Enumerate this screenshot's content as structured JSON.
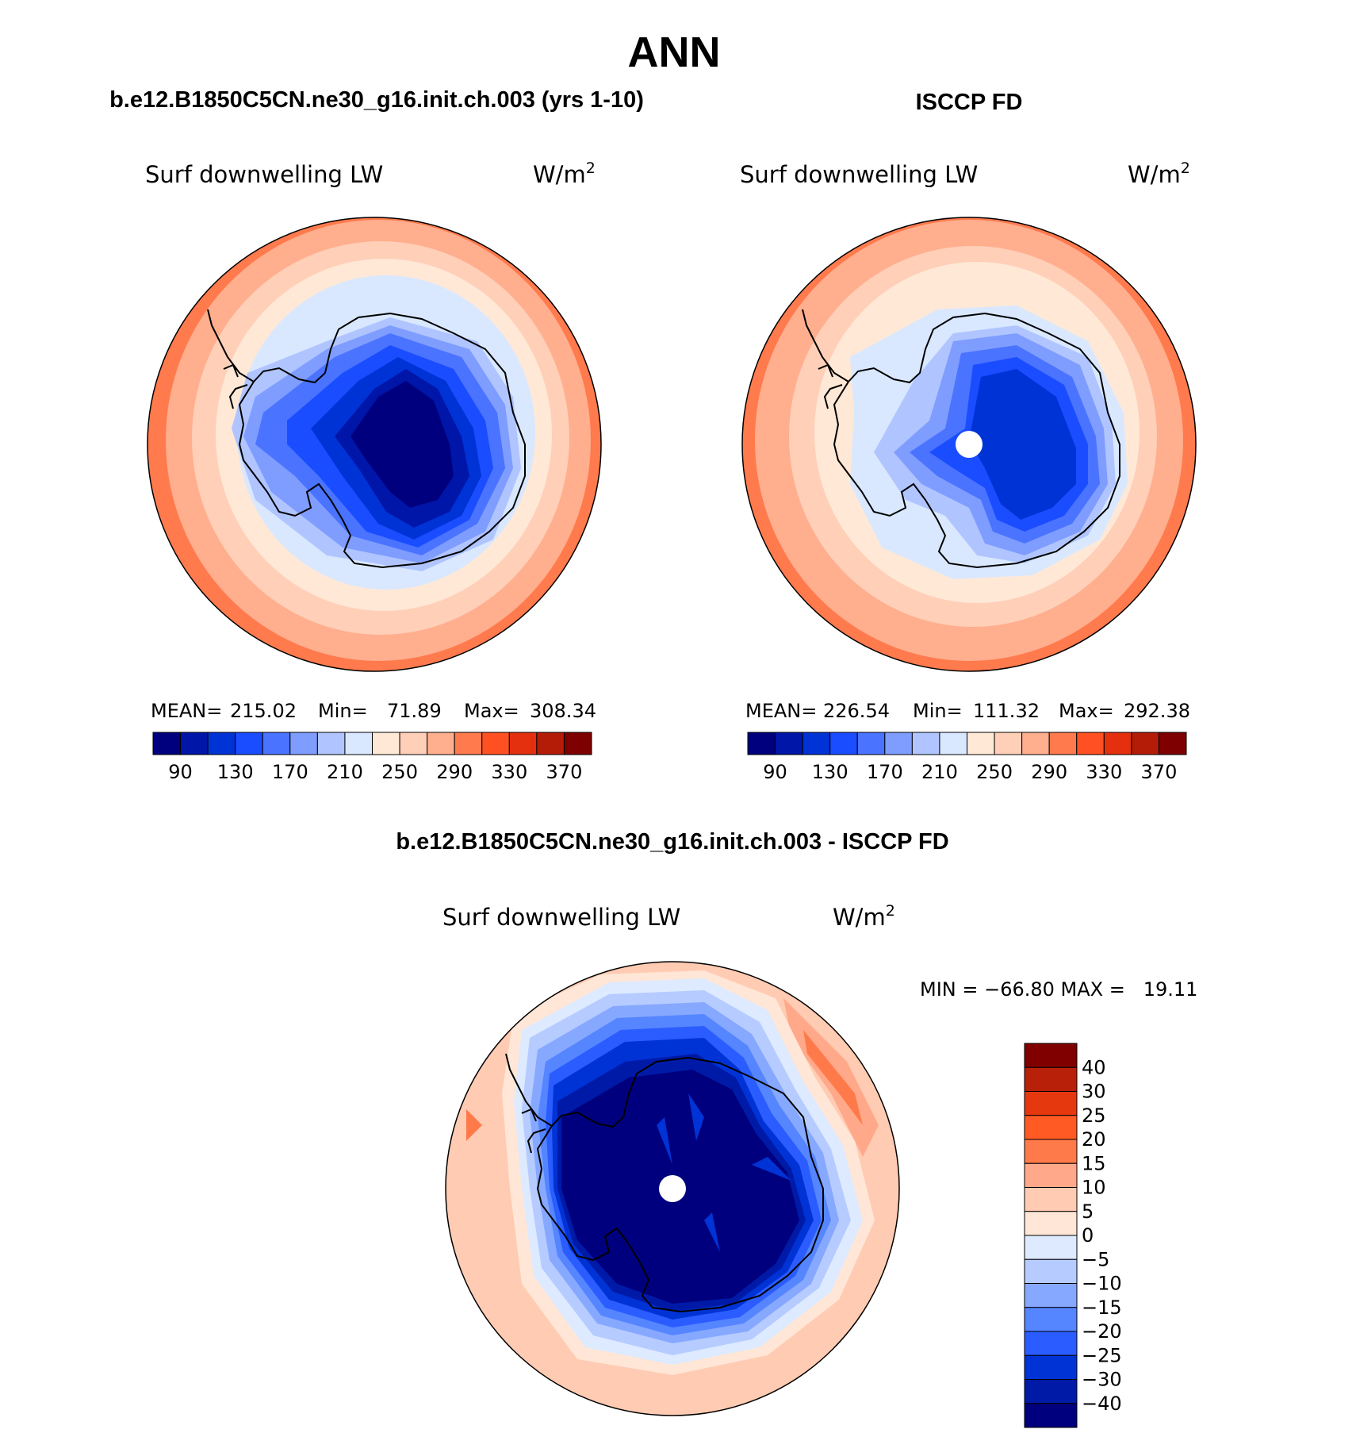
{
  "title": "ANN",
  "palette": {
    "abs": [
      "#00007f",
      "#0016a8",
      "#0033d6",
      "#1a4dff",
      "#4a73ff",
      "#7f9dff",
      "#b0c5ff",
      "#d9e8ff",
      "#ffe8d6",
      "#ffcfb8",
      "#ffae8e",
      "#ff7a4d",
      "#ff5022",
      "#e53010",
      "#b51c08",
      "#7f0000"
    ],
    "diff": [
      "#00007f",
      "#001aa8",
      "#0033d6",
      "#2a5cff",
      "#5585ff",
      "#86a8ff",
      "#b6cbff",
      "#ddeaff",
      "#ffe6d6",
      "#ffcbb2",
      "#ffa88a",
      "#ff7a4a",
      "#ff5a24",
      "#e5380f",
      "#b8200a",
      "#800000"
    ]
  },
  "panels": [
    {
      "id": "model",
      "header": "b.e12.B1850C5CN.ne30_g16.init.ch.003 (yrs 1-10)",
      "variable": "Surf downwelling LW",
      "units": "W/m",
      "units_sup": "2",
      "stats": {
        "mean_label": "MEAN=",
        "mean": "215.02",
        "min_label": "Min=",
        "min": "71.89",
        "max_label": "Max=",
        "max": "308.34"
      },
      "colorbar_ticks": [
        "90",
        "130",
        "170",
        "210",
        "250",
        "290",
        "330",
        "370"
      ],
      "pole_hole": false
    },
    {
      "id": "obs",
      "header": "ISCCP FD",
      "variable": "Surf downwelling LW",
      "units": "W/m",
      "units_sup": "2",
      "stats": {
        "mean_label": "MEAN=",
        "mean": "226.54",
        "min_label": "Min=",
        "min": "111.32",
        "max_label": "Max=",
        "max": "292.38"
      },
      "colorbar_ticks": [
        "90",
        "130",
        "170",
        "210",
        "250",
        "290",
        "330",
        "370"
      ],
      "pole_hole": true
    },
    {
      "id": "diff",
      "header": "b.e12.B1850C5CN.ne30_g16.init.ch.003 - ISCCP FD",
      "variable": "Surf downwelling LW",
      "units": "W/m",
      "units_sup": "2",
      "range_text": "MIN = −66.80 MAX =   19.11",
      "colorbar_ticks": [
        "40",
        "30",
        "25",
        "20",
        "15",
        "10",
        "5",
        "0",
        "−5",
        "−10",
        "−15",
        "−20",
        "−25",
        "−30",
        "−40"
      ],
      "pole_hole": true
    }
  ]
}
